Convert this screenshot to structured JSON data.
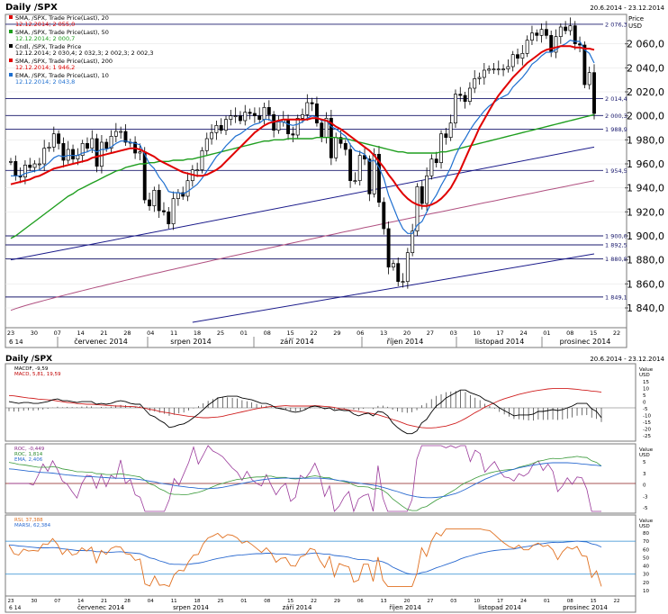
{
  "main": {
    "title": "Daily /SPX",
    "date_range": "20.6.2014 - 23.12.2014",
    "axis_title_top": "Price",
    "axis_title_unit": "USD",
    "legend": [
      {
        "label": "SMA, /SPX, Trade Price(Last), 20",
        "value": "12.12.2014; 2 055,0",
        "color": "#e00000"
      },
      {
        "label": "SMA, /SPX, Trade Price(Last), 50",
        "value": "12.12.2014; 2 000,7",
        "color": "#1e9e1e"
      },
      {
        "label": "Cndl, /SPX, Trade Price",
        "value": "12.12.2014; 2 030,4; 2 032,3; 2 002,3; 2 002,3",
        "color": "#000000"
      },
      {
        "label": "SMA, /SPX, Trade Price(Last), 200",
        "value": "12.12.2014; 1 946,2",
        "color": "#e00000"
      },
      {
        "label": "EMA, /SPX, Trade Price(Last), 10",
        "value": "12.12.2014; 2 043,8",
        "color": "#1e6fd0"
      }
    ],
    "y_ticks": [
      "2 060,0",
      "2 040,0",
      "2 020,0",
      "2 000,0",
      "1 980,0",
      "1 960,0",
      "1 940,0",
      "1 920,0",
      "1 900,0",
      "1 880,0",
      "1 860,0",
      "1 840,0"
    ],
    "h_levels": [
      "2 076,3",
      "2 014,4",
      "2 000,3",
      "1 988,9",
      "1 954,5",
      "1 900,0",
      "1 892,5",
      "1 880,8",
      "1 849,1"
    ]
  },
  "x_axis": {
    "days": [
      "23",
      "30",
      "07",
      "14",
      "21",
      "28",
      "04",
      "11",
      "18",
      "25",
      "01",
      "08",
      "15",
      "22",
      "29",
      "06",
      "13",
      "20",
      "27",
      "03",
      "10",
      "17",
      "24",
      "01",
      "08",
      "15",
      "22"
    ],
    "year_label": "6 14",
    "months": [
      "červenec 2014",
      "srpen 2014",
      "září 2014",
      "říjen 2014",
      "listopad 2014",
      "prosinec 2014"
    ]
  },
  "lower": {
    "title": "Daily /SPX",
    "date_range": "20.6.2014 - 23.12.2014",
    "macd": {
      "legend": [
        "MACDF, -9,59",
        "MACD, 5,81, 19,59"
      ],
      "axis_title": "Value",
      "axis_unit": "USD",
      "ticks": [
        "15",
        "10",
        "5",
        "0",
        "-5",
        "-10",
        "-15",
        "-20",
        "-25"
      ]
    },
    "roc": {
      "legend": [
        "ROC, -0,449",
        "ROC, 1,814",
        "EMA, 2,406"
      ],
      "axis_title": "Value",
      "axis_unit": "USD",
      "ticks": [
        "5",
        "3",
        "0",
        "-3",
        "-5"
      ]
    },
    "rsi": {
      "legend": [
        "RSI, 37,388",
        "MARSI, 62,384"
      ],
      "axis_title": "Value",
      "axis_unit": "USD",
      "ticks": [
        "80",
        "70",
        "60",
        "50",
        "40",
        "30",
        "20",
        "10"
      ]
    }
  },
  "chart_data": {
    "type": "candlestick",
    "title": "Daily /SPX",
    "ylabel": "Price USD",
    "ylim": [
      1825,
      2083
    ],
    "x": [
      "06-20",
      "06-23",
      "06-24",
      "06-25",
      "06-26",
      "06-27",
      "06-30",
      "07-01",
      "07-02",
      "07-03",
      "07-07",
      "07-08",
      "07-09",
      "07-10",
      "07-11",
      "07-14",
      "07-15",
      "07-16",
      "07-17",
      "07-18",
      "07-21",
      "07-22",
      "07-23",
      "07-24",
      "07-25",
      "07-28",
      "07-29",
      "07-30",
      "07-31",
      "08-01",
      "08-04",
      "08-05",
      "08-06",
      "08-07",
      "08-08",
      "08-11",
      "08-12",
      "08-13",
      "08-14",
      "08-15",
      "08-18",
      "08-19",
      "08-20",
      "08-21",
      "08-22",
      "08-25",
      "08-26",
      "08-27",
      "08-28",
      "08-29",
      "09-02",
      "09-03",
      "09-04",
      "09-05",
      "09-08",
      "09-09",
      "09-10",
      "09-11",
      "09-12",
      "09-15",
      "09-16",
      "09-17",
      "09-18",
      "09-19",
      "09-22",
      "09-23",
      "09-24",
      "09-25",
      "09-26",
      "09-29",
      "09-30",
      "10-01",
      "10-02",
      "10-03",
      "10-06",
      "10-07",
      "10-08",
      "10-09",
      "10-10",
      "10-13",
      "10-14",
      "10-15",
      "10-16",
      "10-17",
      "10-20",
      "10-21",
      "10-22",
      "10-23",
      "10-24",
      "10-27",
      "10-28",
      "10-29",
      "10-30",
      "10-31",
      "11-03",
      "11-04",
      "11-05",
      "11-06",
      "11-07",
      "11-10",
      "11-11",
      "11-12",
      "11-13",
      "11-14",
      "11-17",
      "11-18",
      "11-19",
      "11-20",
      "11-21",
      "11-24",
      "11-25",
      "11-26",
      "11-28",
      "12-01",
      "12-02",
      "12-03",
      "12-04",
      "12-05",
      "12-08",
      "12-09",
      "12-10",
      "12-11",
      "12-12"
    ],
    "close": [
      1962,
      1950,
      1949,
      1959,
      1957,
      1960,
      1960,
      1973,
      1974,
      1985,
      1977,
      1963,
      1972,
      1964,
      1967,
      1977,
      1973,
      1981,
      1958,
      1978,
      1973,
      1983,
      1987,
      1987,
      1978,
      1978,
      1969,
      1970,
      1930,
      1925,
      1938,
      1921,
      1920,
      1910,
      1931,
      1936,
      1933,
      1946,
      1955,
      1955,
      1971,
      1981,
      1986,
      1992,
      1988,
      1997,
      2000,
      2000,
      1996,
      2003,
      2002,
      2000,
      1997,
      2007,
      2001,
      1988,
      1995,
      1997,
      1985,
      1984,
      1998,
      2001,
      2011,
      2010,
      1994,
      1982,
      1998,
      1965,
      1982,
      1977,
      1972,
      1946,
      1946,
      1967,
      1964,
      1935,
      1968,
      1928,
      1906,
      1874,
      1877,
      1862,
      1862,
      1886,
      1904,
      1941,
      1927,
      1950,
      1964,
      1961,
      1985,
      1982,
      1994,
      2018,
      2017,
      2012,
      2023,
      2031,
      2032,
      2038,
      2039,
      2039,
      2039,
      2039,
      2041,
      2051,
      2048,
      2052,
      2063,
      2069,
      2067,
      2072,
      2067,
      2053,
      2066,
      2074,
      2071,
      2075,
      2060,
      2059,
      2026,
      2036,
      2002
    ],
    "sma20": [
      1943,
      1944,
      1945,
      1946,
      1947,
      1949,
      1950,
      1952,
      1954,
      1956,
      1957,
      1958,
      1959,
      1960,
      1961,
      1962,
      1963,
      1965,
      1966,
      1967,
      1968,
      1969,
      1970,
      1971,
      1972,
      1973,
      1973,
      1972,
      1970,
      1968,
      1966,
      1963,
      1961,
      1959,
      1957,
      1955,
      1953,
      1952,
      1951,
      1950,
      1950,
      1951,
      1953,
      1955,
      1958,
      1962,
      1966,
      1970,
      1974,
      1978,
      1982,
      1986,
      1989,
      1992,
      1994,
      1995,
      1996,
      1997,
      1997,
      1997,
      1997,
      1997,
      1997,
      1998,
      1998,
      1997,
      1996,
      1994,
      1991,
      1989,
      1986,
      1983,
      1980,
      1977,
      1974,
      1971,
      1967,
      1962,
      1957,
      1951,
      1946,
      1940,
      1935,
      1931,
      1928,
      1926,
      1925,
      1925,
      1926,
      1928,
      1931,
      1935,
      1940,
      1947,
      1955,
      1964,
      1973,
      1981,
      1990,
      1997,
      2004,
      2011,
      2017,
      2022,
      2027,
      2032,
      2036,
      2040,
      2044,
      2047,
      2050,
      2053,
      2055,
      2056,
      2057,
      2058,
      2058,
      2058,
      2057,
      2057,
      2056,
      2056,
      2055
    ],
    "sma50": [
      1898,
      1900,
      1903,
      1906,
      1909,
      1912,
      1915,
      1918,
      1921,
      1924,
      1927,
      1930,
      1933,
      1935,
      1938,
      1940,
      1942,
      1944,
      1946,
      1948,
      1950,
      1952,
      1954,
      1955,
      1957,
      1958,
      1959,
      1960,
      1960,
      1961,
      1961,
      1962,
      1962,
      1962,
      1963,
      1963,
      1963,
      1964,
      1964,
      1965,
      1966,
      1967,
      1968,
      1969,
      1970,
      1971,
      1972,
      1973,
      1974,
      1975,
      1976,
      1977,
      1978,
      1979,
      1979,
      1980,
      1980,
      1980,
      1981,
      1981,
      1981,
      1981,
      1981,
      1981,
      1982,
      1982,
      1982,
      1982,
      1982,
      1981,
      1981,
      1980,
      1979,
      1978,
      1977,
      1976,
      1975,
      1974,
      1973,
      1972,
      1971,
      1970,
      1970,
      1969,
      1969,
      1969,
      1969,
      1969,
      1969,
      1969,
      1970,
      1970,
      1971,
      1972,
      1973,
      1974,
      1975,
      1976,
      1977,
      1978,
      1979,
      1980,
      1981,
      1982,
      1983,
      1984,
      1985,
      1986,
      1987,
      1988,
      1989,
      1990,
      1991,
      1992,
      1993,
      1994,
      1995,
      1996,
      1997,
      1998,
      1999,
      2000,
      2001
    ],
    "ema10": [
      1950,
      1950,
      1950,
      1952,
      1953,
      1954,
      1955,
      1958,
      1961,
      1965,
      1967,
      1966,
      1967,
      1967,
      1967,
      1969,
      1970,
      1972,
      1970,
      1972,
      1972,
      1974,
      1977,
      1979,
      1979,
      1978,
      1977,
      1976,
      1968,
      1960,
      1956,
      1949,
      1944,
      1937,
      1936,
      1936,
      1935,
      1937,
      1940,
      1943,
      1948,
      1954,
      1960,
      1966,
      1970,
      1975,
      1979,
      1983,
      1985,
      1988,
      1991,
      1993,
      1994,
      1997,
      1997,
      1995,
      1995,
      1995,
      1993,
      1992,
      1993,
      1995,
      1998,
      2000,
      1999,
      1996,
      1996,
      1991,
      1989,
      1986,
      1983,
      1976,
      1971,
      1970,
      1968,
      1962,
      1963,
      1957,
      1948,
      1934,
      1924,
      1914,
      1906,
      1902,
      1902,
      1909,
      1912,
      1920,
      1928,
      1934,
      1942,
      1949,
      1957,
      1967,
      1975,
      1981,
      1988,
      1994,
      1999,
      2004,
      2008,
      2011,
      2014,
      2016,
      2018,
      2024,
      2028,
      2032,
      2037,
      2043,
      2046,
      2050,
      2053,
      2053,
      2055,
      2058,
      2060,
      2063,
      2062,
      2062,
      2055,
      2052,
      2044
    ],
    "annotations": [
      "2 076,3",
      "2 014,4",
      "2 000,3",
      "1 988,9",
      "1 954,5",
      "1 900,0",
      "1 892,5",
      "1 880,8",
      "1 849,1"
    ]
  }
}
